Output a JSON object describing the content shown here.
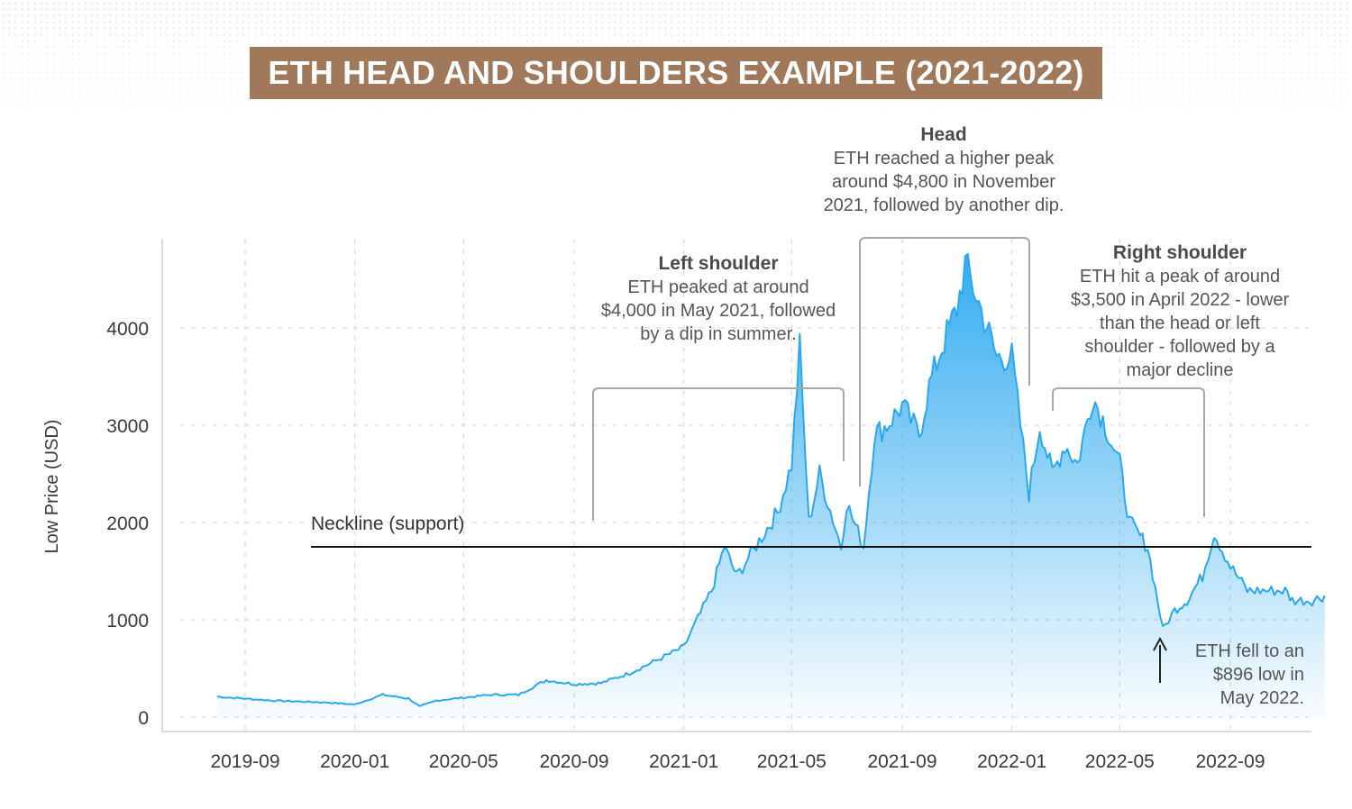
{
  "title": "ETH HEAD AND SHOULDERS EXAMPLE (2021-2022)",
  "colors": {
    "title_bg": "#A0785A",
    "line": "#29A8EF",
    "area_top": "#29A8EF",
    "neckline": "#111111",
    "bracket": "#A8A8A8",
    "grid": "#D9D9D9"
  },
  "chart_data": {
    "type": "area",
    "ylabel": "Low Price (USD)",
    "xlabel": "",
    "ylim": [
      0,
      5000
    ],
    "x_ticks": [
      "2019-09",
      "2020-01",
      "2020-05",
      "2020-09",
      "2021-01",
      "2021-05",
      "2021-09",
      "2022-01",
      "2022-05",
      "2022-09"
    ],
    "y_ticks": [
      0,
      1000,
      2000,
      3000,
      4000
    ],
    "grid": true,
    "series": [
      {
        "x": [
          "2019-08-01",
          "2019-09-01",
          "2019-10-01",
          "2019-11-01",
          "2019-12-01",
          "2020-01-01",
          "2020-02-01",
          "2020-03-01",
          "2020-03-13",
          "2020-04-01",
          "2020-05-01",
          "2020-06-01",
          "2020-07-01",
          "2020-08-01",
          "2020-09-01",
          "2020-10-01",
          "2020-11-01",
          "2020-12-01",
          "2021-01-01",
          "2021-02-01",
          "2021-02-15",
          "2021-03-01",
          "2021-04-01",
          "2021-04-15",
          "2021-05-01",
          "2021-05-10",
          "2021-05-20",
          "2021-06-01",
          "2021-06-25",
          "2021-07-01",
          "2021-07-20",
          "2021-08-01",
          "2021-08-15",
          "2021-09-01",
          "2021-09-20",
          "2021-10-01",
          "2021-10-15",
          "2021-11-01",
          "2021-11-10",
          "2021-12-01",
          "2021-12-15",
          "2022-01-01",
          "2022-01-20",
          "2022-02-01",
          "2022-02-15",
          "2022-03-01",
          "2022-03-15",
          "2022-04-01",
          "2022-04-15",
          "2022-05-01",
          "2022-05-12",
          "2022-06-01",
          "2022-06-18",
          "2022-07-01",
          "2022-07-15",
          "2022-08-01",
          "2022-08-14",
          "2022-09-01",
          "2022-09-20",
          "2022-10-01",
          "2022-10-20",
          "2022-11-01",
          "2022-11-09",
          "2022-12-01",
          "2022-12-15"
        ],
        "values": [
          210,
          190,
          170,
          160,
          150,
          130,
          230,
          190,
          110,
          170,
          200,
          230,
          230,
          380,
          340,
          350,
          450,
          580,
          720,
          1300,
          1750,
          1450,
          1900,
          2100,
          2600,
          3800,
          2000,
          2500,
          1750,
          2200,
          1750,
          2900,
          3000,
          3200,
          2900,
          3400,
          3800,
          4200,
          4650,
          4100,
          3700,
          3700,
          2300,
          3000,
          2500,
          2800,
          2600,
          3300,
          3000,
          2600,
          2000,
          1750,
          900,
          1100,
          1200,
          1450,
          1900,
          1550,
          1300,
          1300,
          1300,
          1300,
          1200,
          1200,
          1250
        ]
      }
    ],
    "neckline": {
      "value": 1750,
      "label": "Neckline (support)"
    },
    "annotations": [
      {
        "title": "Left shoulder",
        "lines": [
          "ETH peaked at around",
          "$4,000 in May 2021, followed",
          "by a dip in summer."
        ]
      },
      {
        "title": "Head",
        "lines": [
          "ETH reached a higher peak",
          "around $4,800 in November",
          "2021, followed by another dip."
        ]
      },
      {
        "title": "Right shoulder",
        "lines": [
          "ETH hit a peak of around",
          "$3,500 in April 2022 - lower",
          "than the head or left",
          "shoulder - followed by a",
          "major decline"
        ]
      },
      {
        "title": "",
        "lines": [
          "ETH fell to an",
          "$896 low in",
          "May 2022."
        ]
      }
    ]
  }
}
